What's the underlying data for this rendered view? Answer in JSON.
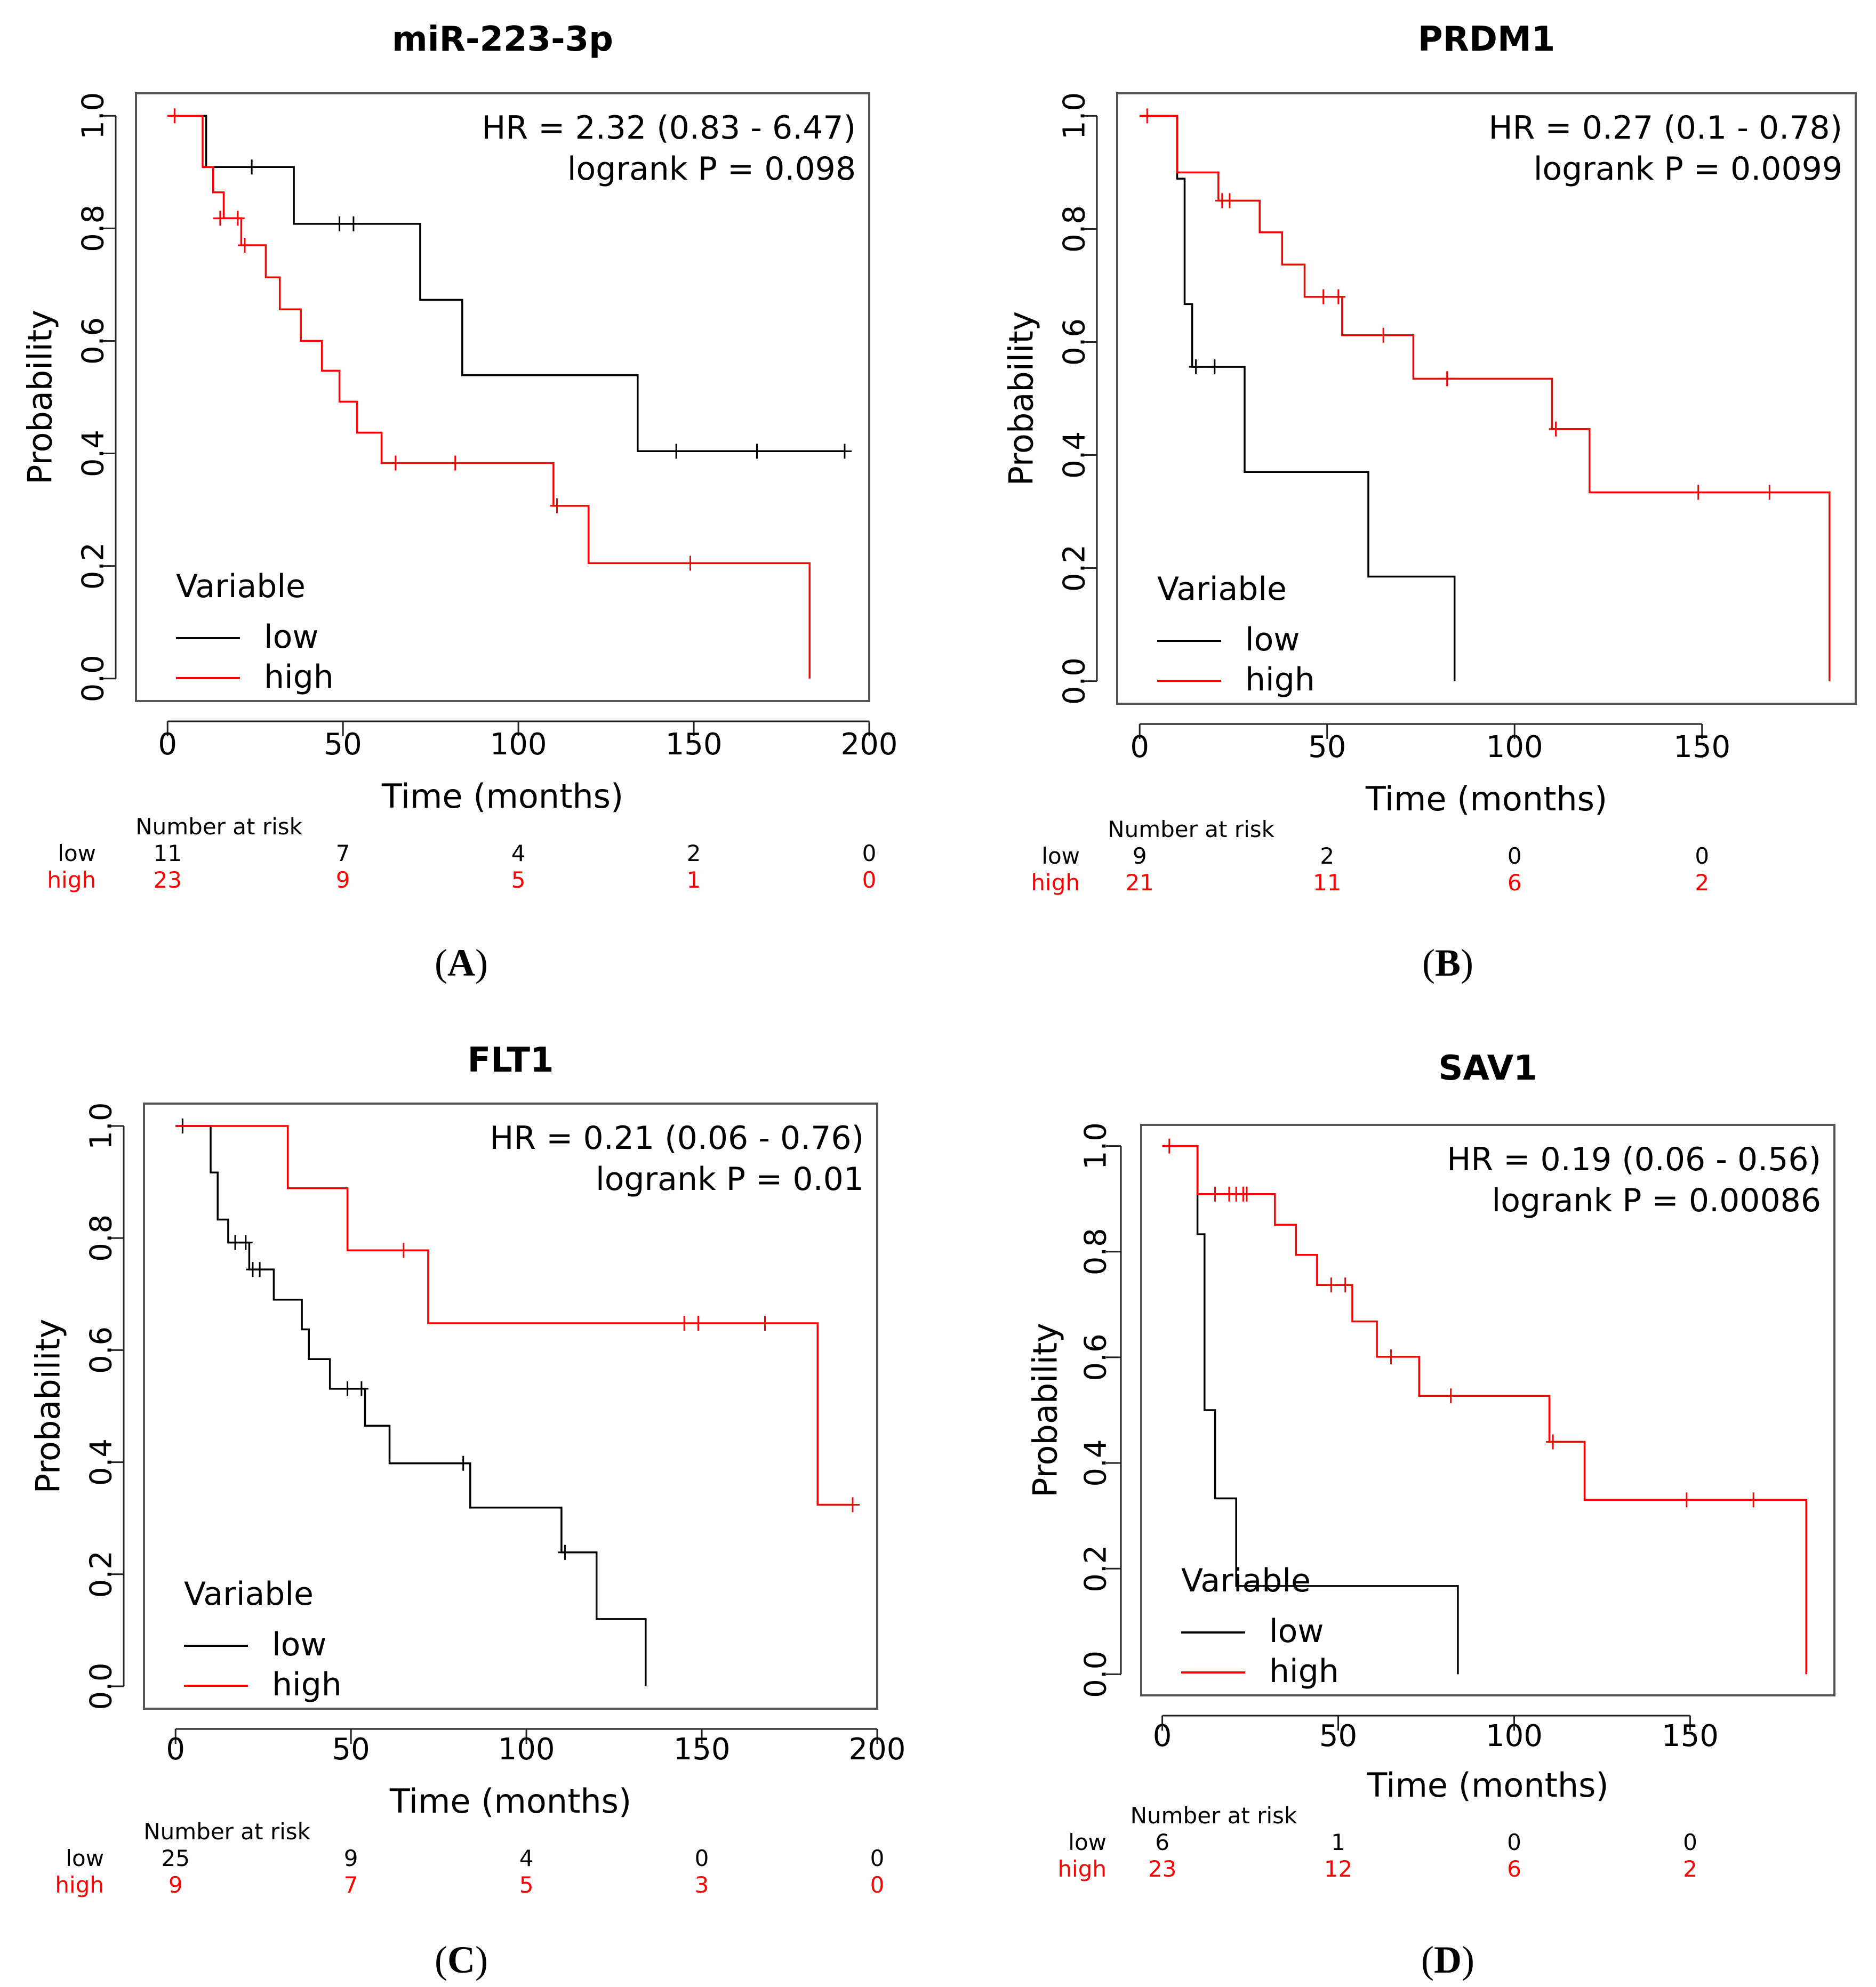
{
  "colors": {
    "low": "#000000",
    "high": "#ff0000",
    "frame": "#555555",
    "axis": "#222222"
  },
  "chart_data": [
    {
      "panel": "A",
      "panel_label": "(A)",
      "type": "line",
      "title": "miR-223-3p",
      "xlabel": "Time (months)",
      "ylabel": "Probability",
      "xlim": [
        -9,
        200
      ],
      "ylim": [
        -0.04,
        1.04
      ],
      "xticks": [
        0,
        50,
        100,
        150,
        200
      ],
      "yticks": [
        0.0,
        0.2,
        0.4,
        0.6,
        0.8,
        1.0
      ],
      "tick_labels_x": [
        "0",
        "50",
        "100",
        "150",
        "200"
      ],
      "tick_labels_y": [
        "0.0",
        "0.2",
        "0.4",
        "0.6",
        "0.8",
        "1.0"
      ],
      "hr_line": "HR = 2.32 (0.83 - 6.47)",
      "p_line": "logrank P = 0.098",
      "legend": {
        "title": "Variable",
        "entries": [
          "low",
          "high"
        ]
      },
      "series": [
        {
          "name": "low",
          "step": [
            [
              0,
              1.0
            ],
            [
              11,
              1.0
            ],
            [
              11,
              0.909
            ],
            [
              36,
              0.909
            ],
            [
              36,
              0.808
            ],
            [
              72,
              0.808
            ],
            [
              72,
              0.673
            ],
            [
              84,
              0.673
            ],
            [
              84,
              0.539
            ],
            [
              134,
              0.539
            ],
            [
              134,
              0.404
            ],
            [
              193,
              0.404
            ]
          ],
          "censor": [
            [
              24,
              0.909
            ],
            [
              49,
              0.808
            ],
            [
              53,
              0.808
            ],
            [
              145,
              0.404
            ],
            [
              168,
              0.404
            ],
            [
              193,
              0.404
            ]
          ]
        },
        {
          "name": "high",
          "step": [
            [
              0,
              1.0
            ],
            [
              10,
              1.0
            ],
            [
              10,
              0.909
            ],
            [
              13,
              0.909
            ],
            [
              13,
              0.864
            ],
            [
              16,
              0.864
            ],
            [
              16,
              0.818
            ],
            [
              21,
              0.818
            ],
            [
              21,
              0.77
            ],
            [
              28,
              0.77
            ],
            [
              28,
              0.713
            ],
            [
              32,
              0.713
            ],
            [
              32,
              0.656
            ],
            [
              38,
              0.656
            ],
            [
              38,
              0.6
            ],
            [
              44,
              0.6
            ],
            [
              44,
              0.547
            ],
            [
              49,
              0.547
            ],
            [
              49,
              0.492
            ],
            [
              54,
              0.492
            ],
            [
              54,
              0.437
            ],
            [
              61,
              0.437
            ],
            [
              61,
              0.383
            ],
            [
              110,
              0.383
            ],
            [
              110,
              0.307
            ],
            [
              120,
              0.307
            ],
            [
              120,
              0.205
            ],
            [
              183,
              0.205
            ],
            [
              183,
              0.0
            ]
          ],
          "censor": [
            [
              2,
              1.0
            ],
            [
              15,
              0.818
            ],
            [
              20,
              0.818
            ],
            [
              22,
              0.77
            ],
            [
              65,
              0.383
            ],
            [
              82,
              0.383
            ],
            [
              111,
              0.307
            ],
            [
              149,
              0.205
            ]
          ]
        }
      ],
      "risk_table": {
        "title": "Number at risk",
        "times": [
          0,
          50,
          100,
          150,
          200
        ],
        "low": [
          "11",
          "7",
          "4",
          "2",
          "0"
        ],
        "high": [
          "23",
          "9",
          "5",
          "1",
          "0"
        ]
      }
    },
    {
      "panel": "B",
      "panel_label": "(B)",
      "type": "line",
      "title": "PRDM1",
      "xlabel": "Time (months)",
      "ylabel": "Probability",
      "xlim": [
        -6,
        191
      ],
      "ylim": [
        -0.04,
        1.04
      ],
      "xticks": [
        0,
        50,
        100,
        150
      ],
      "yticks": [
        0.0,
        0.2,
        0.4,
        0.6,
        0.8,
        1.0
      ],
      "tick_labels_x": [
        "0",
        "50",
        "100",
        "150"
      ],
      "tick_labels_y": [
        "0.0",
        "0.2",
        "0.4",
        "0.6",
        "0.8",
        "1.0"
      ],
      "hr_line": "HR = 0.27 (0.1 - 0.78)",
      "p_line": "logrank P = 0.0099",
      "legend": {
        "title": "Variable",
        "entries": [
          "low",
          "high"
        ]
      },
      "series": [
        {
          "name": "low",
          "step": [
            [
              0,
              1.0
            ],
            [
              10,
              1.0
            ],
            [
              10,
              0.889
            ],
            [
              12,
              0.889
            ],
            [
              12,
              0.667
            ],
            [
              14,
              0.667
            ],
            [
              14,
              0.556
            ],
            [
              28,
              0.556
            ],
            [
              28,
              0.37
            ],
            [
              61,
              0.37
            ],
            [
              61,
              0.185
            ],
            [
              84,
              0.185
            ],
            [
              84,
              0.0
            ]
          ],
          "censor": [
            [
              15,
              0.556
            ],
            [
              20,
              0.556
            ]
          ]
        },
        {
          "name": "high",
          "step": [
            [
              0,
              1.0
            ],
            [
              10,
              1.0
            ],
            [
              10,
              0.9
            ],
            [
              21,
              0.9
            ],
            [
              21,
              0.85
            ],
            [
              32,
              0.85
            ],
            [
              32,
              0.794
            ],
            [
              38,
              0.794
            ],
            [
              38,
              0.737
            ],
            [
              44,
              0.737
            ],
            [
              44,
              0.68
            ],
            [
              54,
              0.68
            ],
            [
              54,
              0.612
            ],
            [
              73,
              0.612
            ],
            [
              73,
              0.535
            ],
            [
              110,
              0.535
            ],
            [
              110,
              0.446
            ],
            [
              120,
              0.446
            ],
            [
              120,
              0.334
            ],
            [
              184,
              0.334
            ],
            [
              184,
              0.0
            ]
          ],
          "censor": [
            [
              2,
              1.0
            ],
            [
              22,
              0.85
            ],
            [
              24,
              0.85
            ],
            [
              49,
              0.68
            ],
            [
              53,
              0.68
            ],
            [
              65,
              0.612
            ],
            [
              82,
              0.535
            ],
            [
              111,
              0.446
            ],
            [
              149,
              0.334
            ],
            [
              168,
              0.334
            ]
          ]
        }
      ],
      "risk_table": {
        "title": "Number at risk",
        "times": [
          0,
          50,
          100,
          150
        ],
        "low": [
          "9",
          "2",
          "0",
          "0"
        ],
        "high": [
          "21",
          "11",
          "6",
          "2"
        ]
      }
    },
    {
      "panel": "C",
      "panel_label": "(C)",
      "type": "line",
      "title": "FLT1",
      "xlabel": "Time (months)",
      "ylabel": "Probability",
      "xlim": [
        -9,
        200
      ],
      "ylim": [
        -0.04,
        1.04
      ],
      "xticks": [
        0,
        50,
        100,
        150,
        200
      ],
      "yticks": [
        0.0,
        0.2,
        0.4,
        0.6,
        0.8,
        1.0
      ],
      "tick_labels_x": [
        "0",
        "50",
        "100",
        "150",
        "200"
      ],
      "tick_labels_y": [
        "0.0",
        "0.2",
        "0.4",
        "0.6",
        "0.8",
        "1.0"
      ],
      "hr_line": "HR = 0.21 (0.06 - 0.76)",
      "p_line": "logrank P = 0.01",
      "legend": {
        "title": "Variable",
        "entries": [
          "low",
          "high"
        ]
      },
      "series": [
        {
          "name": "low",
          "step": [
            [
              0,
              1.0
            ],
            [
              10,
              1.0
            ],
            [
              10,
              0.917
            ],
            [
              12,
              0.917
            ],
            [
              12,
              0.833
            ],
            [
              15,
              0.833
            ],
            [
              15,
              0.792
            ],
            [
              21,
              0.792
            ],
            [
              21,
              0.744
            ],
            [
              28,
              0.744
            ],
            [
              28,
              0.69
            ],
            [
              36,
              0.69
            ],
            [
              36,
              0.637
            ],
            [
              38,
              0.637
            ],
            [
              38,
              0.584
            ],
            [
              44,
              0.584
            ],
            [
              44,
              0.531
            ],
            [
              54,
              0.531
            ],
            [
              54,
              0.465
            ],
            [
              61,
              0.465
            ],
            [
              61,
              0.398
            ],
            [
              84,
              0.398
            ],
            [
              84,
              0.319
            ],
            [
              110,
              0.319
            ],
            [
              110,
              0.239
            ],
            [
              120,
              0.239
            ],
            [
              120,
              0.12
            ],
            [
              134,
              0.12
            ],
            [
              134,
              0.0
            ]
          ],
          "censor": [
            [
              2,
              1.0
            ],
            [
              17,
              0.792
            ],
            [
              20,
              0.792
            ],
            [
              22,
              0.744
            ],
            [
              24,
              0.744
            ],
            [
              49,
              0.531
            ],
            [
              53,
              0.531
            ],
            [
              82,
              0.398
            ],
            [
              111,
              0.239
            ]
          ]
        },
        {
          "name": "high",
          "step": [
            [
              0,
              1.0
            ],
            [
              32,
              1.0
            ],
            [
              32,
              0.889
            ],
            [
              49,
              0.889
            ],
            [
              49,
              0.778
            ],
            [
              72,
              0.778
            ],
            [
              72,
              0.648
            ],
            [
              183,
              0.648
            ],
            [
              183,
              0.324
            ],
            [
              193,
              0.324
            ]
          ],
          "censor": [
            [
              65,
              0.778
            ],
            [
              145,
              0.648
            ],
            [
              149,
              0.648
            ],
            [
              168,
              0.648
            ],
            [
              193,
              0.324
            ]
          ]
        }
      ],
      "risk_table": {
        "title": "Number at risk",
        "times": [
          0,
          50,
          100,
          150,
          200
        ],
        "low": [
          "25",
          "9",
          "4",
          "0",
          "0"
        ],
        "high": [
          "9",
          "7",
          "5",
          "3",
          "0"
        ]
      }
    },
    {
      "panel": "D",
      "panel_label": "(D)",
      "type": "line",
      "title": "SAV1",
      "xlabel": "Time (months)",
      "ylabel": "Probability",
      "xlim": [
        -6,
        191
      ],
      "ylim": [
        -0.04,
        1.04
      ],
      "xticks": [
        0,
        50,
        100,
        150
      ],
      "yticks": [
        0.0,
        0.2,
        0.4,
        0.6,
        0.8,
        1.0
      ],
      "tick_labels_x": [
        "0",
        "50",
        "100",
        "150"
      ],
      "tick_labels_y": [
        "0.0",
        "0.2",
        "0.4",
        "0.6",
        "0.8",
        "1.0"
      ],
      "hr_line": "HR = 0.19 (0.06 - 0.56)",
      "p_line": "logrank P = 0.00086",
      "legend": {
        "title": "Variable",
        "entries": [
          "low",
          "high"
        ]
      },
      "series": [
        {
          "name": "low",
          "step": [
            [
              0,
              1.0
            ],
            [
              10,
              1.0
            ],
            [
              10,
              0.833
            ],
            [
              12,
              0.833
            ],
            [
              12,
              0.5
            ],
            [
              15,
              0.5
            ],
            [
              15,
              0.333
            ],
            [
              21,
              0.333
            ],
            [
              21,
              0.167
            ],
            [
              84,
              0.167
            ],
            [
              84,
              0.0
            ]
          ],
          "censor": []
        },
        {
          "name": "high",
          "step": [
            [
              0,
              1.0
            ],
            [
              10,
              1.0
            ],
            [
              10,
              0.909
            ],
            [
              32,
              0.909
            ],
            [
              32,
              0.851
            ],
            [
              38,
              0.851
            ],
            [
              38,
              0.794
            ],
            [
              44,
              0.794
            ],
            [
              44,
              0.737
            ],
            [
              54,
              0.737
            ],
            [
              54,
              0.668
            ],
            [
              61,
              0.668
            ],
            [
              61,
              0.601
            ],
            [
              73,
              0.601
            ],
            [
              73,
              0.527
            ],
            [
              110,
              0.527
            ],
            [
              110,
              0.44
            ],
            [
              120,
              0.44
            ],
            [
              120,
              0.33
            ],
            [
              183,
              0.33
            ],
            [
              183,
              0.0
            ]
          ],
          "censor": [
            [
              2,
              1.0
            ],
            [
              15,
              0.909
            ],
            [
              19,
              0.909
            ],
            [
              21,
              0.909
            ],
            [
              23,
              0.909
            ],
            [
              24,
              0.909
            ],
            [
              48,
              0.737
            ],
            [
              52,
              0.737
            ],
            [
              65,
              0.601
            ],
            [
              82,
              0.527
            ],
            [
              111,
              0.44
            ],
            [
              149,
              0.33
            ],
            [
              168,
              0.33
            ]
          ]
        }
      ],
      "risk_table": {
        "title": "Number at risk",
        "times": [
          0,
          50,
          100,
          150
        ],
        "low": [
          "6",
          "1",
          "0",
          "0"
        ],
        "high": [
          "23",
          "12",
          "6",
          "2"
        ]
      }
    }
  ]
}
